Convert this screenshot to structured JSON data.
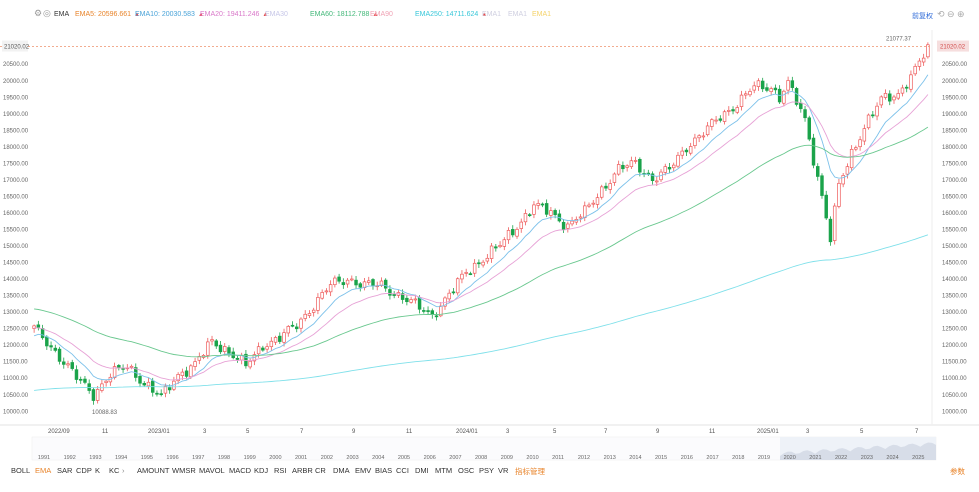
{
  "toolbar": {
    "settings_icon": "gear-icon",
    "eye_icon": "eye-icon",
    "indicator_name": "EMA",
    "indicators": [
      {
        "label": "EMA5: 20596.661",
        "color": "#e8842b",
        "trend": "▲"
      },
      {
        "label": "EMA10: 20030.583",
        "color": "#4aa3d8",
        "trend": "▲"
      },
      {
        "label": "EMA20: 19411.246",
        "color": "#d978c9",
        "trend": "▲"
      },
      {
        "label": "EMA30",
        "color": "#c7c7e8",
        "trend": ""
      },
      {
        "label": "EMA60: 18112.788",
        "color": "#44b87a",
        "trend": "▲"
      },
      {
        "label": "EMA90",
        "color": "#f0a3b5",
        "trend": ""
      },
      {
        "label": "EMA250: 14711.624",
        "color": "#38c7d9",
        "trend": "▲"
      },
      {
        "label": "EMA1",
        "color": "#cfcfe0",
        "trend": ""
      },
      {
        "label": "EMA1",
        "color": "#cfcfe0",
        "trend": ""
      },
      {
        "label": "EMA1",
        "color": "#f5d36a",
        "trend": ""
      }
    ],
    "right_link": "前复权",
    "right_icons": [
      "undo-icon",
      "zoom-out-icon",
      "zoom-in-icon"
    ]
  },
  "chart_data": {
    "type": "candlestick",
    "y_labels": [
      "20500.00",
      "20000.00",
      "19500.00",
      "19000.00",
      "18500.00",
      "18000.00",
      "17500.00",
      "17000.00",
      "16500.00",
      "16000.00",
      "15500.00",
      "15000.00",
      "14500.00",
      "14000.00",
      "13500.00",
      "13000.00",
      "12500.00",
      "12000.00",
      "11500.00",
      "11000.00",
      "10500.00",
      "10000.00"
    ],
    "ylim": [
      9600,
      21400
    ],
    "current_price": "21020.02",
    "max_label": "21077.37",
    "min_label": "10088.83",
    "x_labels": [
      "2022/09",
      "11",
      "2023/01",
      "3",
      "5",
      "7",
      "9",
      "11",
      "2024/01",
      "3",
      "5",
      "7",
      "9",
      "11",
      "2025/01",
      "3",
      "5",
      "7"
    ],
    "overview_years": [
      "1991",
      "1992",
      "1993",
      "1994",
      "1995",
      "1996",
      "1997",
      "1998",
      "1999",
      "2000",
      "2001",
      "2002",
      "2003",
      "2004",
      "2005",
      "2006",
      "2007",
      "2008",
      "2009",
      "2010",
      "2011",
      "2012",
      "2013",
      "2014",
      "2015",
      "2016",
      "2017",
      "2018",
      "2019",
      "2020",
      "2021",
      "2022",
      "2023",
      "2024",
      "2025"
    ],
    "waypoints": [
      [
        0,
        12500
      ],
      [
        5,
        11800
      ],
      [
        10,
        11000
      ],
      [
        14,
        10500
      ],
      [
        18,
        11100
      ],
      [
        22,
        11350
      ],
      [
        26,
        10850
      ],
      [
        30,
        10400
      ],
      [
        34,
        11100
      ],
      [
        38,
        11400
      ],
      [
        42,
        12100
      ],
      [
        46,
        11800
      ],
      [
        50,
        11350
      ],
      [
        54,
        12000
      ],
      [
        58,
        12200
      ],
      [
        62,
        12600
      ],
      [
        66,
        13200
      ],
      [
        70,
        13800
      ],
      [
        74,
        14000
      ],
      [
        78,
        13800
      ],
      [
        82,
        13800
      ],
      [
        86,
        13500
      ],
      [
        90,
        13200
      ],
      [
        94,
        12900
      ],
      [
        98,
        13500
      ],
      [
        102,
        14200
      ],
      [
        106,
        14600
      ],
      [
        110,
        15000
      ],
      [
        114,
        15600
      ],
      [
        118,
        16200
      ],
      [
        122,
        16000
      ],
      [
        126,
        15600
      ],
      [
        130,
        16000
      ],
      [
        134,
        16700
      ],
      [
        138,
        17300
      ],
      [
        142,
        17500
      ],
      [
        146,
        17000
      ],
      [
        150,
        17300
      ],
      [
        154,
        18000
      ],
      [
        158,
        18400
      ],
      [
        162,
        18900
      ],
      [
        166,
        19300
      ],
      [
        170,
        19800
      ],
      [
        174,
        19800
      ],
      [
        176,
        19500
      ],
      [
        178,
        19900
      ],
      [
        182,
        18800
      ],
      [
        186,
        16500
      ],
      [
        188,
        15200
      ],
      [
        190,
        16800
      ],
      [
        193,
        17800
      ],
      [
        196,
        18600
      ],
      [
        200,
        19400
      ],
      [
        204,
        19600
      ],
      [
        208,
        20300
      ],
      [
        211,
        20950
      ]
    ],
    "ema_lines": [
      {
        "name": "EMA10",
        "color": "#7cc1ea",
        "period": 10
      },
      {
        "name": "EMA20",
        "color": "#e7a2d6",
        "period": 20
      },
      {
        "name": "EMA60",
        "color": "#6ac88f",
        "period": 60
      },
      {
        "name": "EMA250",
        "color": "#7fe0ea",
        "period": 250
      }
    ],
    "up_color": "#ee5a5a",
    "down_color": "#1aa34a"
  },
  "bottom_tabs": [
    "BOLL",
    "EMA",
    "SAR",
    "CDP",
    "K",
    "KC",
    "AMOUNT",
    "WMSR",
    "MAVOL",
    "MACD",
    "KDJ",
    "RSI",
    "ARBR",
    "CR",
    "DMA",
    "EMV",
    "BIAS",
    "CCI",
    "DMI",
    "MTM",
    "OSC",
    "PSY",
    "VR",
    "指标管理"
  ],
  "active_tab": "EMA",
  "more_tabs_icon": "chevron-right-icon",
  "settings_link": "参数"
}
